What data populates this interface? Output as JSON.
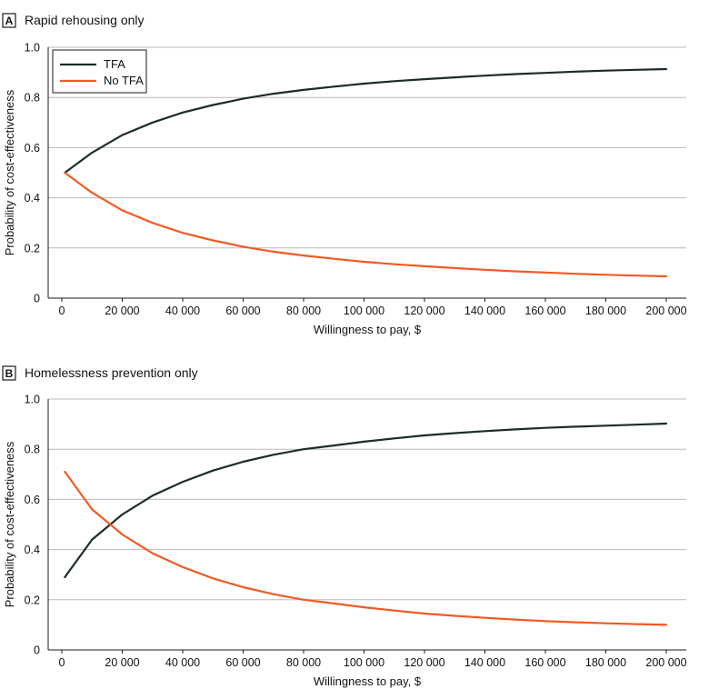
{
  "chart_data": [
    {
      "type": "line",
      "panel_letter": "A",
      "title": "Rapid rehousing only",
      "xlabel": "Willingness to pay, $",
      "ylabel": "Probability of cost-effectiveness",
      "xlim": [
        0,
        200000
      ],
      "ylim": [
        0,
        1.0
      ],
      "xticks": [
        0,
        20000,
        40000,
        60000,
        80000,
        100000,
        120000,
        140000,
        160000,
        180000,
        200000
      ],
      "xtick_labels": [
        "0",
        "20 000",
        "40 000",
        "60 000",
        "80 000",
        "100 000",
        "120 000",
        "140 000",
        "160 000",
        "180 000",
        "200 000"
      ],
      "yticks": [
        0,
        0.2,
        0.4,
        0.6,
        0.8,
        1.0
      ],
      "ytick_labels": [
        "0",
        "0.2",
        "0.4",
        "0.6",
        "0.8",
        "1.0"
      ],
      "grid": true,
      "legend": "top-left",
      "x": [
        1000,
        10000,
        20000,
        30000,
        40000,
        50000,
        60000,
        70000,
        80000,
        90000,
        100000,
        110000,
        120000,
        130000,
        140000,
        150000,
        160000,
        170000,
        180000,
        190000,
        200000
      ],
      "series": [
        {
          "name": "TFA",
          "color": "#1c2b2b",
          "values": [
            0.5,
            0.58,
            0.65,
            0.7,
            0.74,
            0.77,
            0.795,
            0.815,
            0.83,
            0.843,
            0.855,
            0.865,
            0.873,
            0.88,
            0.887,
            0.893,
            0.898,
            0.903,
            0.907,
            0.91,
            0.913
          ]
        },
        {
          "name": "No TFA",
          "color": "#f15a22",
          "values": [
            0.5,
            0.42,
            0.35,
            0.3,
            0.26,
            0.23,
            0.205,
            0.185,
            0.17,
            0.157,
            0.145,
            0.135,
            0.127,
            0.12,
            0.113,
            0.107,
            0.102,
            0.097,
            0.093,
            0.09,
            0.087
          ]
        }
      ]
    },
    {
      "type": "line",
      "panel_letter": "B",
      "title": "Homelessness prevention only",
      "xlabel": "Willingness to pay, $",
      "ylabel": "Probability of cost-effectiveness",
      "xlim": [
        0,
        200000
      ],
      "ylim": [
        0,
        1.0
      ],
      "xticks": [
        0,
        20000,
        40000,
        60000,
        80000,
        100000,
        120000,
        140000,
        160000,
        180000,
        200000
      ],
      "xtick_labels": [
        "0",
        "20 000",
        "40 000",
        "60 000",
        "80 000",
        "100 000",
        "120 000",
        "140 000",
        "160 000",
        "180 000",
        "200 000"
      ],
      "yticks": [
        0,
        0.2,
        0.4,
        0.6,
        0.8,
        1.0
      ],
      "ytick_labels": [
        "0",
        "0.2",
        "0.4",
        "0.6",
        "0.8",
        "1.0"
      ],
      "grid": true,
      "legend": "none",
      "x": [
        1000,
        10000,
        20000,
        30000,
        40000,
        50000,
        60000,
        70000,
        80000,
        90000,
        100000,
        110000,
        120000,
        130000,
        140000,
        150000,
        160000,
        170000,
        180000,
        190000,
        200000
      ],
      "series": [
        {
          "name": "TFA",
          "color": "#1c2b2b",
          "values": [
            0.29,
            0.44,
            0.54,
            0.615,
            0.67,
            0.715,
            0.75,
            0.778,
            0.8,
            0.815,
            0.83,
            0.843,
            0.855,
            0.864,
            0.872,
            0.879,
            0.885,
            0.89,
            0.894,
            0.898,
            0.902
          ]
        },
        {
          "name": "No TFA",
          "color": "#f15a22",
          "values": [
            0.71,
            0.56,
            0.46,
            0.385,
            0.33,
            0.285,
            0.25,
            0.222,
            0.2,
            0.185,
            0.17,
            0.157,
            0.145,
            0.136,
            0.128,
            0.121,
            0.115,
            0.11,
            0.106,
            0.103,
            0.1
          ]
        }
      ]
    }
  ]
}
